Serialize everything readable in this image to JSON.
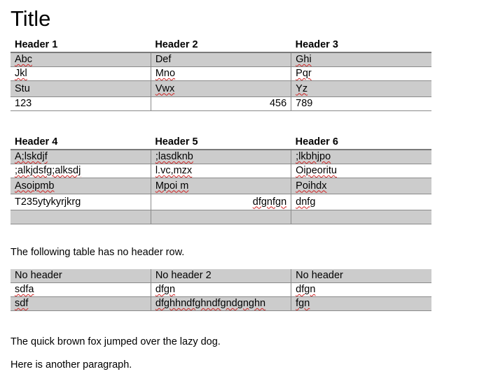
{
  "title": "Title",
  "tables": [
    {
      "headers": [
        "Header 1",
        "Header 2",
        "Header 3"
      ],
      "rows": [
        {
          "shaded": true,
          "cells": [
            {
              "text": "Abc",
              "spell_error": true
            },
            {
              "text": "Def"
            },
            {
              "text": "Ghi",
              "spell_error": true
            }
          ]
        },
        {
          "shaded": false,
          "cells": [
            {
              "text": "Jkl",
              "spell_error": true
            },
            {
              "text": "Mno",
              "spell_error": true
            },
            {
              "text": "Pqr",
              "spell_error": true
            }
          ]
        },
        {
          "shaded": true,
          "cells": [
            {
              "text": "Stu"
            },
            {
              "text": "Vwx",
              "spell_error": true
            },
            {
              "text": "Yz",
              "spell_error": true
            }
          ]
        },
        {
          "shaded": false,
          "cells": [
            {
              "text": "123"
            },
            {
              "text": "456",
              "align": "right"
            },
            {
              "text": "789"
            }
          ]
        }
      ]
    },
    {
      "headers": [
        "Header 4",
        "Header 5",
        "Header 6"
      ],
      "rows": [
        {
          "shaded": true,
          "cells": [
            {
              "text": "A;lskdjf",
              "spell_error": true
            },
            {
              "text": ";lasdknb",
              "spell_error": true
            },
            {
              "text": ";lkbhjpo",
              "spell_error": true
            }
          ]
        },
        {
          "shaded": false,
          "cells": [
            {
              "text": ";alkjdsfg;alksdj",
              "spell_error": true
            },
            {
              "text": "l.vc,mzx",
              "spell_error": true
            },
            {
              "text": "Oipeoritu",
              "spell_error": true
            }
          ]
        },
        {
          "shaded": true,
          "cells": [
            {
              "text": "Asoipmb",
              "spell_error": true
            },
            {
              "text": "Mpoi m",
              "spell_error": true
            },
            {
              "text": "Poihdx",
              "spell_error": true
            }
          ]
        },
        {
          "shaded": false,
          "cells": [
            {
              "text": "T235ytykyrjkrg"
            },
            {
              "text": "dfgnfgn",
              "align": "right",
              "spell_error": true
            },
            {
              "text": "dnfg",
              "spell_error": true
            }
          ]
        },
        {
          "shaded": true,
          "cells": [
            {
              "text": ""
            },
            {
              "text": ""
            },
            {
              "text": ""
            }
          ]
        }
      ]
    },
    {
      "headers": [],
      "rows": [
        {
          "shaded": true,
          "cells": [
            {
              "text": "No header"
            },
            {
              "text": "No header 2"
            },
            {
              "text": "No header"
            }
          ]
        },
        {
          "shaded": false,
          "cells": [
            {
              "text": "sdfa",
              "spell_error": true
            },
            {
              "text": "dfgn",
              "spell_error": true
            },
            {
              "text": "dfgn",
              "spell_error": true
            }
          ]
        },
        {
          "shaded": true,
          "cells": [
            {
              "text": "sdf",
              "spell_error": true
            },
            {
              "text": "dfghhndfghndfgndgnghn",
              "spell_error": true
            },
            {
              "text": "fgn",
              "spell_error": true
            }
          ]
        }
      ]
    }
  ],
  "paragraphs": {
    "intro_no_header": "The following table has no header row.",
    "fox": "The quick brown fox jumped over the lazy dog.",
    "another": "Here is another paragraph."
  }
}
